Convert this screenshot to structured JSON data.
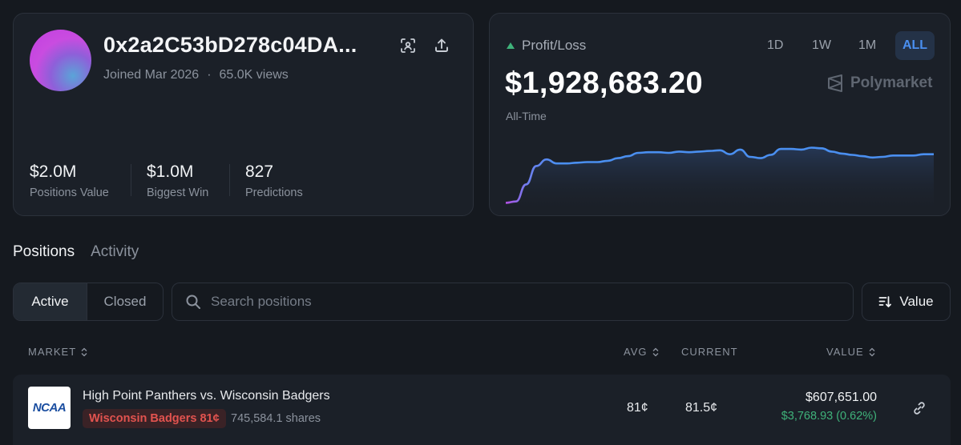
{
  "profile": {
    "address": "0x2a2C53bD278c04DA...",
    "joined": "Joined Mar 2026",
    "separator": "·",
    "views": "65.0K views",
    "icons": [
      "qr-scan-icon",
      "share-icon"
    ],
    "stats": [
      {
        "value": "$2.0M",
        "label": "Positions Value"
      },
      {
        "value": "$1.0M",
        "label": "Biggest Win"
      },
      {
        "value": "827",
        "label": "Predictions"
      }
    ]
  },
  "pnl": {
    "label": "Profit/Loss",
    "value": "$1,928,683.20",
    "period": "All-Time",
    "ranges": [
      "1D",
      "1W",
      "1M",
      "ALL"
    ],
    "active_range": "ALL",
    "brand": "Polymarket",
    "accent_color": "#4a8ff0",
    "up_color": "#3fb27a",
    "chart_data": {
      "type": "area",
      "values": [
        0.02,
        0.04,
        0.3,
        0.58,
        0.68,
        0.62,
        0.62,
        0.63,
        0.64,
        0.64,
        0.66,
        0.7,
        0.73,
        0.78,
        0.79,
        0.79,
        0.78,
        0.8,
        0.79,
        0.8,
        0.81,
        0.82,
        0.76,
        0.83,
        0.72,
        0.7,
        0.75,
        0.84,
        0.84,
        0.83,
        0.86,
        0.85,
        0.8,
        0.77,
        0.75,
        0.73,
        0.71,
        0.72,
        0.74,
        0.74,
        0.74,
        0.76,
        0.76
      ],
      "ylim": [
        0,
        1
      ],
      "grid": false
    }
  },
  "tabs": [
    {
      "label": "Positions",
      "active": true
    },
    {
      "label": "Activity",
      "active": false
    }
  ],
  "filters": {
    "active_label": "Active",
    "closed_label": "Closed",
    "search_placeholder": "Search positions",
    "sort_label": "Value"
  },
  "table": {
    "headers": {
      "market": "MARKET",
      "avg": "AVG",
      "current": "CURRENT",
      "value": "VALUE"
    },
    "rows": [
      {
        "logo_text": "NCAA",
        "title": "High Point Panthers vs. Wisconsin Badgers",
        "outcome": "Wisconsin Badgers 81¢",
        "shares": "745,584.1 shares",
        "avg": "81¢",
        "current": "81.5¢",
        "value": "$607,651.00",
        "change": "$3,768.93 (0.62%)"
      }
    ]
  }
}
